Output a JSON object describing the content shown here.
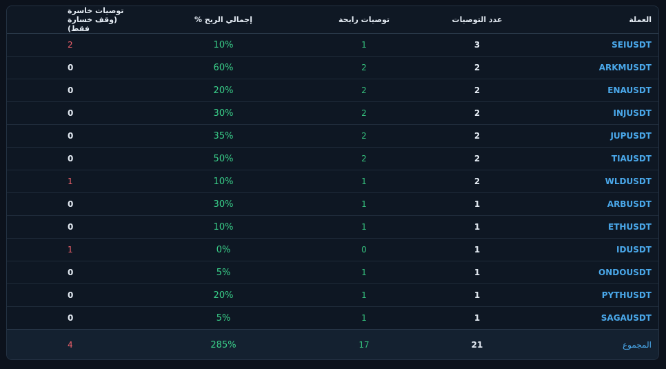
{
  "headers": {
    "coin": "العملة",
    "count": "عدد التوصيات",
    "wins": "توصيات رابحة",
    "profit": "إجمالي الربح %",
    "losses": "توصيات خاسرة (وقف خسارة فقط)"
  },
  "rows": [
    {
      "coin": "SEIUSDT",
      "count": "3",
      "wins": "1",
      "profit": "10%",
      "losses": "2"
    },
    {
      "coin": "ARKMUSDT",
      "count": "2",
      "wins": "2",
      "profit": "60%",
      "losses": "0"
    },
    {
      "coin": "ENAUSDT",
      "count": "2",
      "wins": "2",
      "profit": "20%",
      "losses": "0"
    },
    {
      "coin": "INJUSDT",
      "count": "2",
      "wins": "2",
      "profit": "30%",
      "losses": "0"
    },
    {
      "coin": "JUPUSDT",
      "count": "2",
      "wins": "2",
      "profit": "35%",
      "losses": "0"
    },
    {
      "coin": "TIAUSDT",
      "count": "2",
      "wins": "2",
      "profit": "50%",
      "losses": "0"
    },
    {
      "coin": "WLDUSDT",
      "count": "2",
      "wins": "1",
      "profit": "10%",
      "losses": "1"
    },
    {
      "coin": "ARBUSDT",
      "count": "1",
      "wins": "1",
      "profit": "30%",
      "losses": "0"
    },
    {
      "coin": "ETHUSDT",
      "count": "1",
      "wins": "1",
      "profit": "10%",
      "losses": "0"
    },
    {
      "coin": "IDUSDT",
      "count": "1",
      "wins": "0",
      "profit": "0%",
      "losses": "1"
    },
    {
      "coin": "ONDOUSDT",
      "count": "1",
      "wins": "1",
      "profit": "5%",
      "losses": "0"
    },
    {
      "coin": "PYTHUSDT",
      "count": "1",
      "wins": "1",
      "profit": "20%",
      "losses": "0"
    },
    {
      "coin": "SAGAUSDT",
      "count": "1",
      "wins": "1",
      "profit": "5%",
      "losses": "0"
    }
  ],
  "totals": {
    "label": "المجموع",
    "count": "21",
    "wins": "17",
    "profit": "285%",
    "losses": "4"
  },
  "colors": {
    "background": "#0c121c",
    "coin_link": "#4aa8ea",
    "profit_green": "#3ad08a",
    "loss_red": "#f0616b",
    "text": "#e6edf5"
  }
}
